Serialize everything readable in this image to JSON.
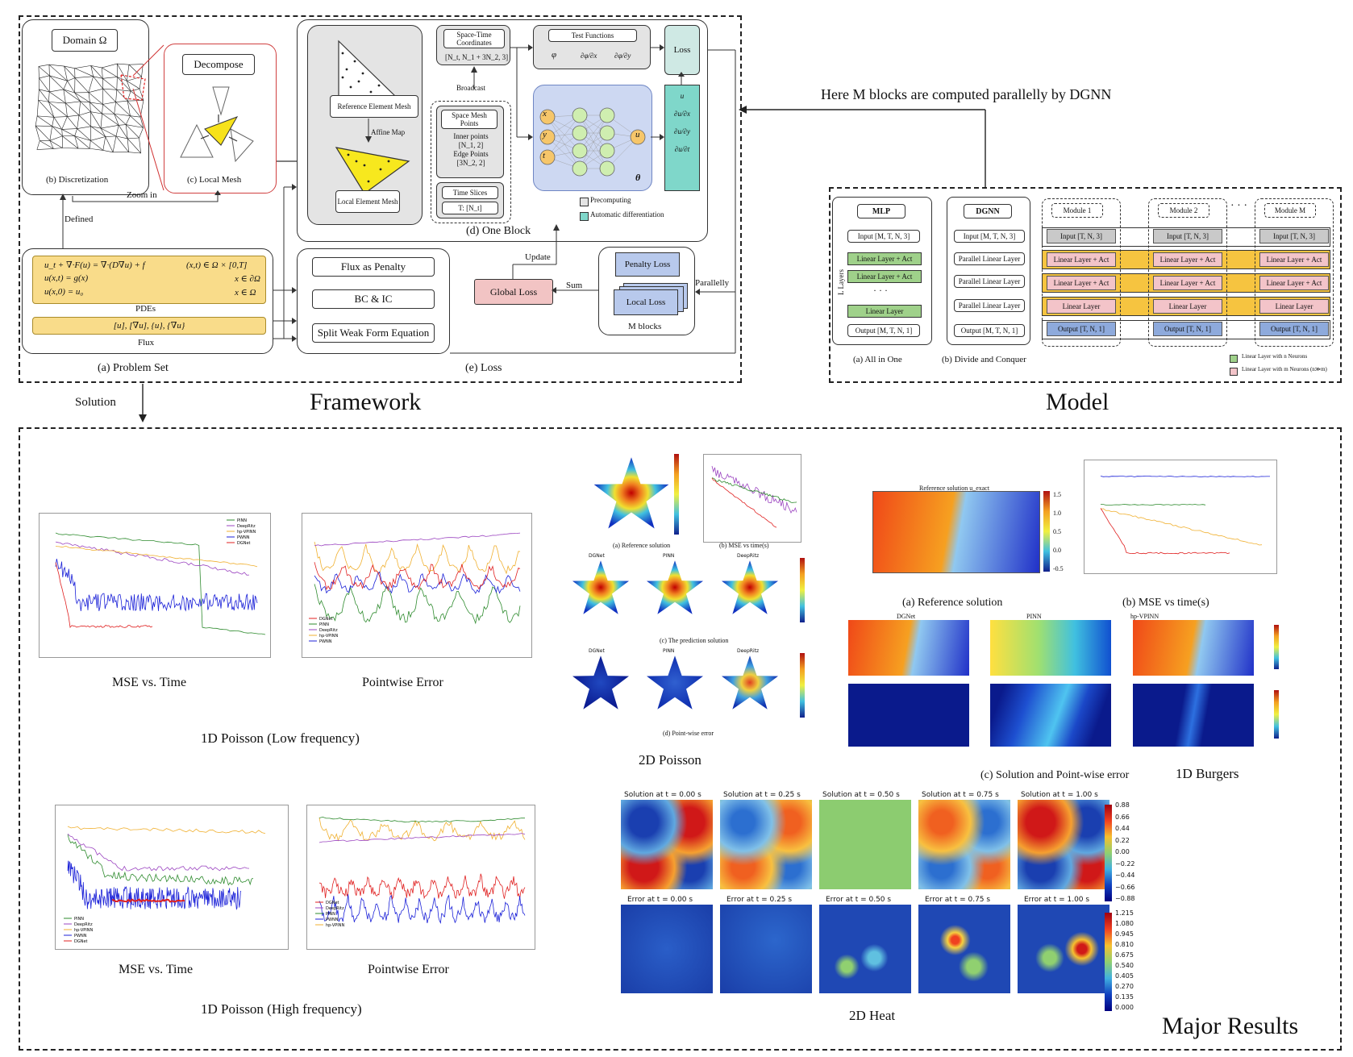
{
  "framework": {
    "title": "Framework",
    "problem_set": {
      "caption": "(a) Problem Set",
      "domain_label": "Domain Ω",
      "discretization": "(b) Discretization",
      "local_mesh": "(c) Local Mesh",
      "decompose": "Decompose",
      "zoom_in": "Zoom in",
      "defined": "Defined",
      "pde_lines": [
        "u_t + ∇·F(u) = ∇·(D∇u) + f",
        "u(x,t) = g(x)",
        "u(x,0) = u₀"
      ],
      "pde_conds": [
        "(x,t) ∈ Ω × [0,T]",
        "x ∈ ∂Ω",
        "x ∈ Ω"
      ],
      "pdes": "PDEs",
      "flux_expr": "[u], [∇u], {u}, {∇u}",
      "flux": "Flux"
    },
    "one_block": {
      "caption": "(d) One Block",
      "reference_mesh": "Reference Element Mesh",
      "affine_map": "Affine Map",
      "local_mesh": "Local Element Mesh",
      "space_time": "Space-Time Coordinates",
      "space_time_dims": "[N_t, N_1 + 3N_2, 3]",
      "broadcast": "Broadcast",
      "space_mesh": "Space Mesh Points",
      "inner_points": "Inner points",
      "inner_dims": "[N_1, 2]",
      "edge_points": "Edge Points",
      "edge_dims": "[3N_2, 2]",
      "time_slices": "Time Slices",
      "time_dims": "T: [N_t]",
      "test_functions": "Test Functions",
      "test_terms": [
        "φ",
        "∂φ/∂x",
        "∂φ/∂y"
      ],
      "inputs": [
        "x",
        "y",
        "t"
      ],
      "output": "u",
      "theta": "θ",
      "loss": "Loss",
      "derivs": [
        "u",
        "∂u/∂x",
        "∂u/∂y",
        "∂u/∂t"
      ],
      "precomputing": "Precomputing",
      "autodiff": "Automatic differentiation"
    },
    "loss": {
      "caption": "(e) Loss",
      "flux_penalty": "Flux as Penalty",
      "bc_ic": "BC & IC",
      "split_weak": "Split Weak Form Equation",
      "global_loss": "Global Loss",
      "update": "Update",
      "sum": "Sum",
      "penalty_loss": "Penalty Loss",
      "local_loss": "Local Loss",
      "m_blocks": "M blocks",
      "parallelly": "Parallelly"
    },
    "solution": "Solution"
  },
  "model": {
    "title": "Model",
    "note": "Here M blocks are computed parallelly by DGNN",
    "mlp": {
      "title": "MLP",
      "input": "Input [M, T, N, 3]",
      "layers": [
        "Linear Layer + Act",
        "Linear Layer + Act",
        "Linear Layer"
      ],
      "output": "Output [M, T, N, 1]",
      "l_layers": "L Layers",
      "dots": "· · ·",
      "caption": "(a) All in One"
    },
    "dgnn": {
      "title": "DGNN",
      "input": "Input [M, T, N, 3]",
      "layers": [
        "Parallel Linear Layer",
        "Parallel Linear Layer",
        "Parallel Linear Layer"
      ],
      "output": "Output [M, T, N, 1]",
      "caption": "(b) Divide and Conquer"
    },
    "modules": [
      "Module 1",
      "Module 2",
      "Module M"
    ],
    "module_rows": [
      "Input [T, N, 3]",
      "Linear Layer + Act",
      "Linear Layer + Act",
      "Linear Layer",
      "Output [T, N, 1]"
    ],
    "legend": [
      "Linear Layer with n Neurons",
      "Linear Layer with m Neurons (n≫m)"
    ],
    "colors": {
      "green": "#9fd18a",
      "pink": "#f3c4c9",
      "yellow": "#f6c440",
      "gray": "#c9c9c9",
      "blue": "#8eaadc"
    }
  },
  "results": {
    "title": "Major Results",
    "poisson_low": {
      "title": "1D Poisson (Low frequency)",
      "mse_caption": "MSE vs. Time",
      "pw_caption": "Pointwise Error",
      "legend_mse": [
        "PINN",
        "DeepRitz",
        "hp-VPINN",
        "PWNN",
        "DGNet"
      ],
      "legend_pw": [
        "DGNet",
        "PINN",
        "DeepRitz",
        "hp-VPINN",
        "PWNN"
      ]
    },
    "poisson_high": {
      "title": "1D Poisson (High frequency)",
      "mse_caption": "MSE vs. Time",
      "pw_caption": "Pointwise Error",
      "legend_mse": [
        "PINN",
        "DeepRitz",
        "hp-VPINN",
        "PWNN",
        "DGNet"
      ],
      "legend_pw": [
        "DGNet",
        "DeepRitz",
        "PINN",
        "PWNN",
        "hp-VPINN"
      ]
    },
    "poisson_2d": {
      "title": "2D Poisson",
      "ref": "(a) Reference solution",
      "mse": "(b) MSE vs time(s)",
      "pred": "(c) The prediction solution",
      "err": "(d) Point-wise error",
      "methods": [
        "DGNet",
        "PINN",
        "DeepRitz"
      ]
    },
    "burgers": {
      "title": "1D Burgers",
      "ref_title": "Reference solution u_exact",
      "ref": "(a) Reference solution",
      "mse": "(b) MSE vs time(s)",
      "sol": "(c) Solution and Point-wise error",
      "methods": [
        "DGNet",
        "PINN",
        "hp-VPINN"
      ],
      "cbar": [
        "1.5",
        "1.0",
        "0.5",
        "0.0",
        "-0.5"
      ]
    },
    "heat": {
      "title": "2D Heat",
      "sol_titles": [
        "Solution at t = 0.00 s",
        "Solution at t = 0.25 s",
        "Solution at t = 0.50 s",
        "Solution at t = 0.75 s",
        "Solution at t = 1.00 s"
      ],
      "err_titles": [
        "Error at t = 0.00 s",
        "Error at t = 0.25 s",
        "Error at t = 0.50 s",
        "Error at t = 0.75 s",
        "Error at t = 1.00 s"
      ],
      "cbar_sol": [
        "0.88",
        "0.66",
        "0.44",
        "0.22",
        "0.00",
        "−0.22",
        "−0.44",
        "−0.66",
        "−0.88"
      ],
      "cbar_err": [
        "1.215",
        "1.080",
        "0.945",
        "0.810",
        "0.675",
        "0.540",
        "0.405",
        "0.270",
        "0.135",
        "0.000"
      ]
    }
  }
}
